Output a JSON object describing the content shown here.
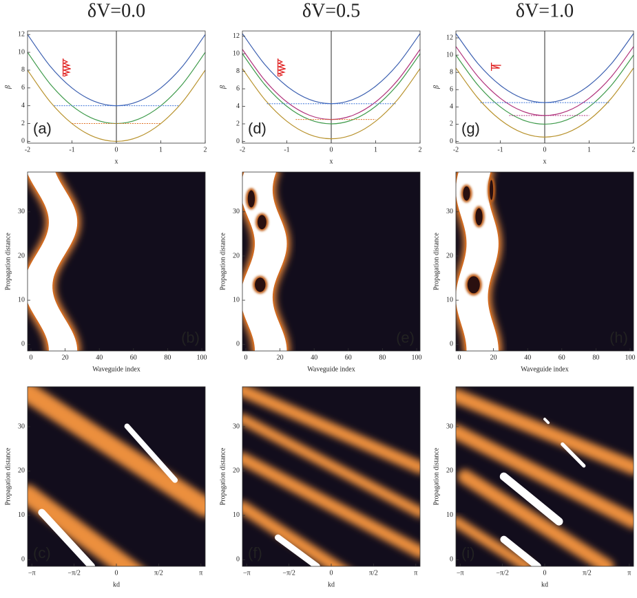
{
  "chart_data": [
    {
      "type": "line",
      "title": "δV=0.0",
      "label": "(a)",
      "xlabel": "x",
      "ylabel": "β",
      "xlim": [
        -2,
        2
      ],
      "ylim": [
        -0.2,
        12.4
      ],
      "xticks": [
        -2,
        -1,
        0,
        1,
        2
      ],
      "yticks": [
        0,
        2,
        4,
        6,
        8,
        10,
        12
      ],
      "x": [
        -2,
        -1.5,
        -1,
        -0.5,
        0,
        0.5,
        1,
        1.5,
        2
      ],
      "series": [
        {
          "color": "#3b5fb0",
          "values": [
            12,
            8.5,
            6,
            4.5,
            4,
            4.5,
            6,
            8.5,
            12
          ]
        },
        {
          "color": "#3d9a4a",
          "values": [
            10,
            6.5,
            4,
            2.5,
            2,
            2.5,
            4,
            6.5,
            10
          ]
        },
        {
          "color": "#b8922c",
          "values": [
            8,
            4.5,
            2,
            0.5,
            0,
            0.5,
            2,
            4.5,
            8
          ]
        }
      ],
      "reference_lines": [
        {
          "y": 4,
          "xrange": [
            -1.4,
            1.4
          ],
          "color": "#3a72d8"
        },
        {
          "y": 2,
          "xrange": [
            -1,
            1
          ],
          "color": "#e07020"
        }
      ]
    },
    {
      "type": "density",
      "label": "(b)",
      "xlabel": "Waveguide index",
      "ylabel": "Propagation distance",
      "xlim": [
        -2,
        102
      ],
      "ylim": [
        -1.5,
        39
      ],
      "xticks": [
        0,
        20,
        40,
        60,
        80,
        100
      ],
      "yticks": [
        0,
        10,
        20,
        30
      ]
    },
    {
      "type": "density",
      "label": "(c)",
      "xlabel": "kd",
      "ylabel": "Propagation distance",
      "xlim": [
        -3.3,
        3.3
      ],
      "ylim": [
        -1.5,
        39
      ],
      "xticks": [
        {
          "value": -3.14159,
          "label": "−π"
        },
        {
          "value": -1.5708,
          "label": "−π/2"
        },
        0,
        {
          "value": 1.5708,
          "label": "π/2"
        },
        {
          "value": 3.14159,
          "label": "π"
        }
      ],
      "yticks": [
        0,
        10,
        20,
        30
      ]
    },
    {
      "type": "line",
      "title": "δV=0.5",
      "label": "(d)",
      "xlabel": "x",
      "ylabel": "β",
      "xlim": [
        -2,
        2
      ],
      "ylim": [
        -0.2,
        12.6
      ],
      "xticks": [
        -2,
        -1,
        0,
        1,
        2
      ],
      "yticks": [
        0,
        2,
        4,
        6,
        8,
        10,
        12
      ],
      "x": [
        -2,
        -1.5,
        -1,
        -0.5,
        0,
        0.5,
        1,
        1.5,
        2
      ],
      "series": [
        {
          "color": "#3b5fb0",
          "values": [
            12.3,
            8.8,
            6.3,
            4.8,
            4.3,
            4.8,
            6.3,
            8.8,
            12.3
          ]
        },
        {
          "color": "#b0307a",
          "values": [
            10.5,
            7,
            4.5,
            3,
            2.5,
            3,
            4.5,
            7,
            10.5
          ]
        },
        {
          "color": "#3d9a4a",
          "values": [
            10,
            6.5,
            4,
            2.5,
            2,
            2.5,
            4,
            6.5,
            10
          ]
        },
        {
          "color": "#b8922c",
          "values": [
            8.3,
            4.8,
            2.3,
            0.8,
            0.3,
            0.8,
            2.3,
            4.8,
            8.3
          ]
        }
      ],
      "reference_lines": [
        {
          "y": 4.3,
          "xrange": [
            -1.45,
            1.45
          ],
          "color": "#3a72d8"
        },
        {
          "y": 2.5,
          "xrange": [
            -0.8,
            1
          ],
          "color": "#e07020"
        }
      ]
    },
    {
      "type": "density",
      "label": "(e)",
      "xlabel": "Waveguide index",
      "ylabel": "Propagation distance",
      "xlim": [
        -2,
        102
      ],
      "ylim": [
        -1.5,
        39
      ],
      "xticks": [
        0,
        20,
        40,
        60,
        80,
        100
      ],
      "yticks": [
        0,
        10,
        20,
        30
      ]
    },
    {
      "type": "density",
      "label": "(f)",
      "xlabel": "kd",
      "ylabel": "Propagation distance",
      "xlim": [
        -3.3,
        3.3
      ],
      "ylim": [
        -1.5,
        39
      ],
      "xticks": [
        {
          "value": -3.14159,
          "label": "−π"
        },
        {
          "value": -1.5708,
          "label": "−π/2"
        },
        0,
        {
          "value": 1.5708,
          "label": "π/2"
        },
        {
          "value": 3.14159,
          "label": "π"
        }
      ],
      "yticks": [
        0,
        10,
        20,
        30
      ]
    },
    {
      "type": "line",
      "title": "δV=1.0",
      "label": "(g)",
      "xlabel": "x",
      "ylabel": "β",
      "xlim": [
        -2,
        2
      ],
      "ylim": [
        -0.2,
        12.8
      ],
      "xticks": [
        -2,
        -1,
        0,
        1,
        2
      ],
      "yticks": [
        0,
        2,
        4,
        6,
        8,
        10,
        12
      ],
      "x": [
        -2,
        -1.5,
        -1,
        -0.5,
        0,
        0.5,
        1,
        1.5,
        2
      ],
      "series": [
        {
          "color": "#3b5fb0",
          "values": [
            12.5,
            9,
            6.5,
            5,
            4.5,
            5,
            6.5,
            9,
            12.5
          ]
        },
        {
          "color": "#b0307a",
          "values": [
            11,
            7.5,
            5,
            3.5,
            3,
            3.5,
            5,
            7.5,
            11
          ]
        },
        {
          "color": "#3d9a4a",
          "values": [
            10,
            6.5,
            4,
            2.5,
            2,
            2.5,
            4,
            6.5,
            10
          ]
        },
        {
          "color": "#b8922c",
          "values": [
            8.5,
            5,
            2.5,
            1,
            0.5,
            1,
            2.5,
            5,
            8.5
          ]
        }
      ],
      "reference_lines": [
        {
          "y": 4.5,
          "xrange": [
            -1.45,
            1.45
          ],
          "color": "#3a72d8"
        },
        {
          "y": 3,
          "xrange": [
            -0.8,
            1
          ],
          "color": "#b03080"
        }
      ]
    },
    {
      "type": "density",
      "label": "(h)",
      "xlabel": "Waveguide index",
      "ylabel": "Propagation distance",
      "xlim": [
        -2,
        102
      ],
      "ylim": [
        -1.5,
        39
      ],
      "xticks": [
        0,
        20,
        40,
        60,
        80,
        100
      ],
      "yticks": [
        0,
        10,
        20,
        30
      ]
    },
    {
      "type": "density",
      "label": "(i)",
      "xlabel": "kd",
      "ylabel": "Propagation distance",
      "xlim": [
        -3.3,
        3.3
      ],
      "ylim": [
        -1.5,
        39
      ],
      "xticks": [
        {
          "value": -3.14159,
          "label": "−π"
        },
        {
          "value": -1.5708,
          "label": "−π/2"
        },
        0,
        {
          "value": 1.5708,
          "label": "π/2"
        },
        {
          "value": 3.14159,
          "label": "π"
        }
      ],
      "yticks": [
        0,
        10,
        20,
        30
      ]
    }
  ]
}
